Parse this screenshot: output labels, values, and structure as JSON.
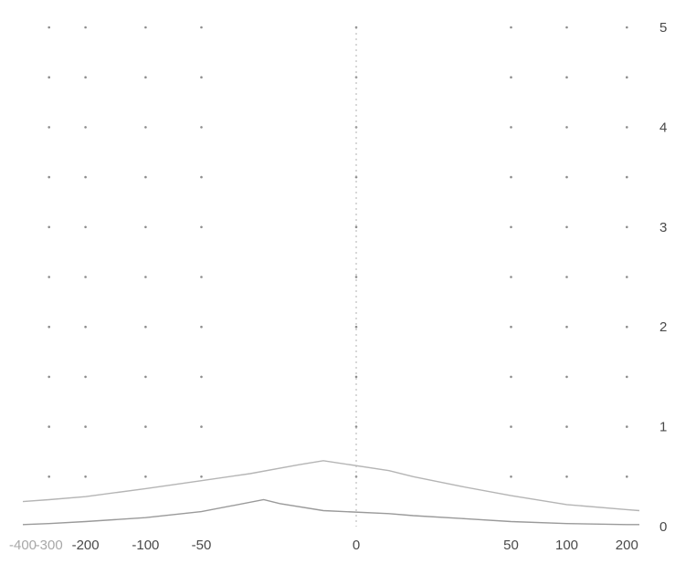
{
  "chart_data": {
    "type": "line",
    "title": "",
    "xlabel": "",
    "ylabel": "",
    "x_scale": "symmetric-log",
    "x_ticks": [
      -400,
      -300,
      -200,
      -100,
      -50,
      0,
      50,
      100,
      200
    ],
    "x_tick_labels": [
      "-400",
      "-300",
      "-200",
      "-100",
      "-50",
      "0",
      "50",
      "100",
      "200"
    ],
    "y_ticks": [
      0,
      1,
      2,
      3,
      4,
      5
    ],
    "y_tick_labels": [
      "0",
      "1",
      "2",
      "3",
      "4",
      "5"
    ],
    "xlim": [
      -400,
      230
    ],
    "ylim": [
      0,
      5
    ],
    "y_axis_side": "right",
    "grid": "dotted",
    "legend": "none",
    "series": [
      {
        "color": "#b5b5b5",
        "points": [
          [
            -400,
            0.25
          ],
          [
            -300,
            0.27
          ],
          [
            -200,
            0.3
          ],
          [
            -100,
            0.38
          ],
          [
            -50,
            0.46
          ],
          [
            -25,
            0.53
          ],
          [
            -10,
            0.62
          ],
          [
            -5,
            0.66
          ],
          [
            5,
            0.56
          ],
          [
            10,
            0.5
          ],
          [
            25,
            0.4
          ],
          [
            50,
            0.31
          ],
          [
            100,
            0.22
          ],
          [
            200,
            0.17
          ],
          [
            230,
            0.16
          ]
        ]
      },
      {
        "color": "#9a9a9a",
        "points": [
          [
            -400,
            0.02
          ],
          [
            -300,
            0.03
          ],
          [
            -200,
            0.05
          ],
          [
            -100,
            0.09
          ],
          [
            -50,
            0.15
          ],
          [
            -20,
            0.27
          ],
          [
            -15,
            0.23
          ],
          [
            -5,
            0.16
          ],
          [
            5,
            0.13
          ],
          [
            10,
            0.11
          ],
          [
            25,
            0.08
          ],
          [
            50,
            0.05
          ],
          [
            100,
            0.03
          ],
          [
            200,
            0.02
          ],
          [
            230,
            0.02
          ]
        ]
      }
    ]
  }
}
